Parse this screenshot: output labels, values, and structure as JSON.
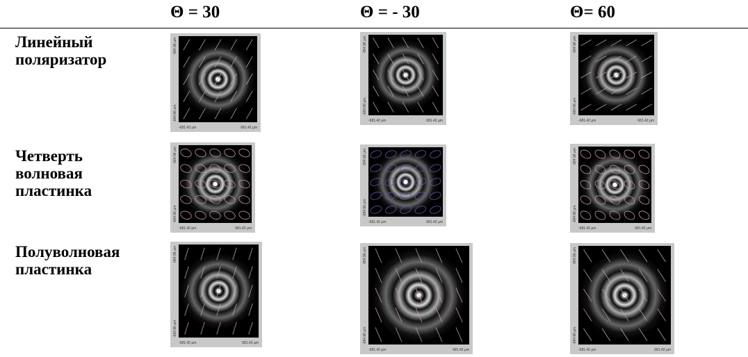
{
  "table": {
    "column_headers": [
      "Θ = 30",
      "Θ = - 30",
      "Θ= 60"
    ],
    "rows": [
      {
        "label": "Линейный\nполяризатор"
      },
      {
        "label": "Четверть\nволновая\nпластинка"
      },
      {
        "label": "Полуволновая\nпластинка"
      }
    ]
  },
  "image_axis_labels": {
    "y_top": "684.96 µm",
    "y_bottom": "-684.96 µm",
    "x_left": "-681.42 µm",
    "x_right": "681.42 µm"
  }
}
